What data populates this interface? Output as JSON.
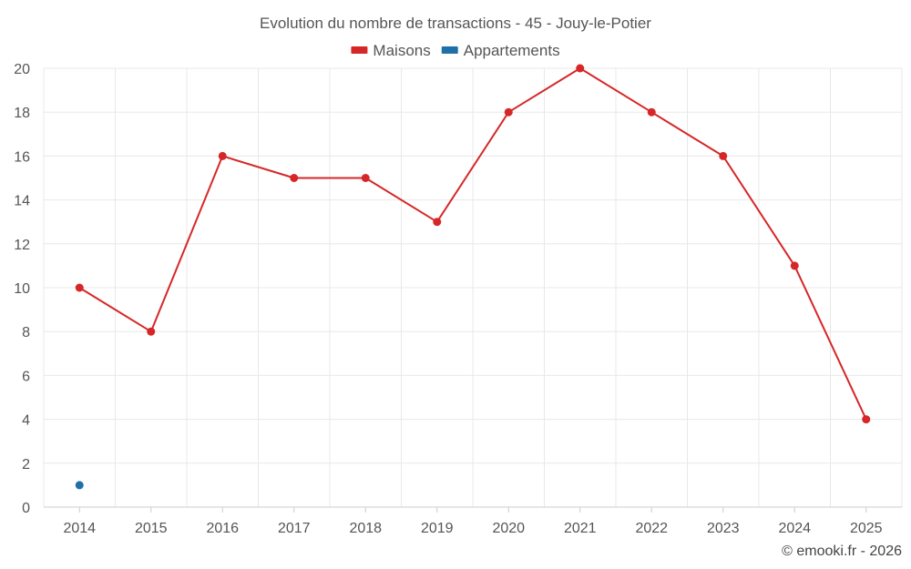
{
  "chart_data": {
    "type": "line",
    "title": "Evolution du nombre de transactions - 45 - Jouy-le-Potier",
    "categories": [
      "2014",
      "2015",
      "2016",
      "2017",
      "2018",
      "2019",
      "2020",
      "2021",
      "2022",
      "2023",
      "2024",
      "2025"
    ],
    "series": [
      {
        "name": "Maisons",
        "color": "#d62728",
        "values": [
          10,
          8,
          16,
          15,
          15,
          13,
          18,
          20,
          18,
          16,
          11,
          4
        ]
      },
      {
        "name": "Appartements",
        "color": "#1f6fa8",
        "values": [
          1,
          null,
          null,
          null,
          null,
          null,
          null,
          null,
          null,
          null,
          null,
          null
        ]
      }
    ],
    "yticks": [
      0,
      2,
      4,
      6,
      8,
      10,
      12,
      14,
      16,
      18,
      20
    ],
    "ylim": [
      0,
      20
    ],
    "xlabel": "",
    "ylabel": "",
    "legend_position": "top-center",
    "grid": true
  },
  "credit": "© emooki.fr - 2026"
}
